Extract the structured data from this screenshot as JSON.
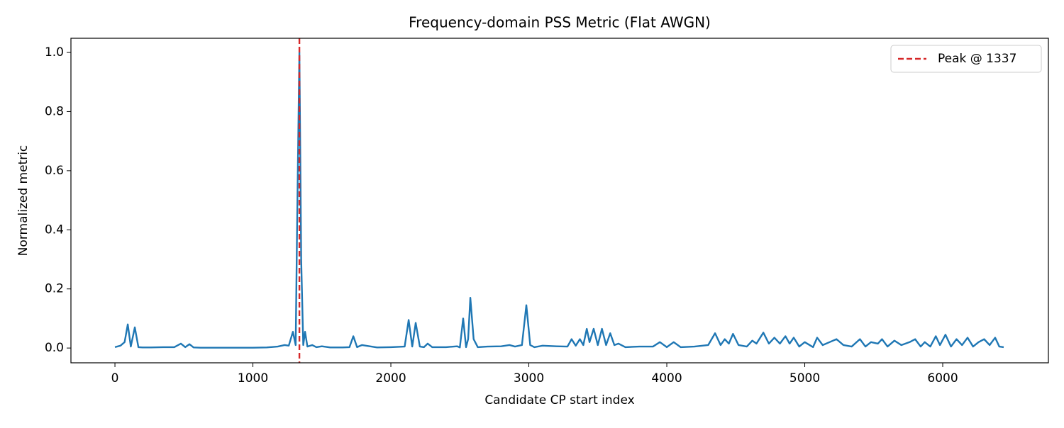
{
  "chart_data": {
    "type": "line",
    "title": "Frequency-domain PSS Metric (Flat AWGN)",
    "x_label": "Candidate CP start index",
    "y_label": "Normalized metric",
    "x": [
      0,
      40,
      70,
      93,
      115,
      144,
      170,
      200,
      260,
      350,
      430,
      478,
      510,
      540,
      570,
      620,
      800,
      1000,
      1100,
      1180,
      1230,
      1260,
      1290,
      1310,
      1320,
      1337,
      1350,
      1365,
      1378,
      1395,
      1430,
      1460,
      1500,
      1560,
      1650,
      1700,
      1728,
      1755,
      1790,
      1900,
      2000,
      2100,
      2129,
      2155,
      2180,
      2210,
      2240,
      2267,
      2300,
      2400,
      2480,
      2500,
      2524,
      2545,
      2560,
      2576,
      2600,
      2630,
      2700,
      2800,
      2860,
      2900,
      2950,
      2982,
      3010,
      3040,
      3100,
      3200,
      3280,
      3310,
      3340,
      3370,
      3395,
      3420,
      3440,
      3470,
      3500,
      3530,
      3560,
      3590,
      3620,
      3650,
      3700,
      3800,
      3900,
      3950,
      4000,
      4050,
      4100,
      4200,
      4300,
      4350,
      4390,
      4420,
      4450,
      4480,
      4520,
      4580,
      4620,
      4650,
      4700,
      4740,
      4780,
      4820,
      4860,
      4890,
      4920,
      4960,
      5000,
      5060,
      5090,
      5130,
      5180,
      5230,
      5280,
      5340,
      5400,
      5440,
      5480,
      5530,
      5560,
      5600,
      5650,
      5700,
      5760,
      5800,
      5840,
      5870,
      5910,
      5950,
      5980,
      6020,
      6060,
      6100,
      6140,
      6180,
      6220,
      6260,
      6300,
      6340,
      6380,
      6410,
      6442
    ],
    "series": [
      {
        "color": "#1f77b4",
        "values": [
          0.003,
          0.008,
          0.02,
          0.08,
          0.005,
          0.07,
          0.003,
          0.002,
          0.002,
          0.003,
          0.003,
          0.015,
          0.003,
          0.013,
          0.002,
          0.001,
          0.001,
          0.001,
          0.002,
          0.005,
          0.01,
          0.008,
          0.055,
          0.01,
          0.4,
          1.0,
          0.3,
          0.01,
          0.055,
          0.005,
          0.01,
          0.003,
          0.006,
          0.002,
          0.002,
          0.003,
          0.04,
          0.003,
          0.01,
          0.002,
          0.003,
          0.005,
          0.095,
          0.005,
          0.085,
          0.005,
          0.003,
          0.015,
          0.003,
          0.003,
          0.006,
          0.002,
          0.1,
          0.003,
          0.03,
          0.17,
          0.03,
          0.003,
          0.005,
          0.006,
          0.01,
          0.005,
          0.01,
          0.145,
          0.01,
          0.003,
          0.008,
          0.006,
          0.005,
          0.03,
          0.008,
          0.03,
          0.01,
          0.065,
          0.02,
          0.065,
          0.01,
          0.065,
          0.01,
          0.05,
          0.01,
          0.015,
          0.003,
          0.005,
          0.005,
          0.02,
          0.003,
          0.02,
          0.003,
          0.005,
          0.01,
          0.05,
          0.01,
          0.03,
          0.015,
          0.048,
          0.01,
          0.005,
          0.025,
          0.015,
          0.052,
          0.015,
          0.035,
          0.015,
          0.04,
          0.015,
          0.035,
          0.005,
          0.02,
          0.003,
          0.035,
          0.01,
          0.02,
          0.03,
          0.01,
          0.005,
          0.03,
          0.005,
          0.02,
          0.015,
          0.03,
          0.005,
          0.025,
          0.01,
          0.02,
          0.03,
          0.005,
          0.02,
          0.005,
          0.04,
          0.01,
          0.045,
          0.005,
          0.03,
          0.01,
          0.035,
          0.005,
          0.02,
          0.03,
          0.01,
          0.035,
          0.005,
          0.003
        ]
      }
    ],
    "markers": [
      {
        "name": "Peak @ 1337",
        "x": 1337,
        "color": "#d62728",
        "style": "dashed"
      }
    ],
    "xlim": [
      -319,
      6766
    ],
    "ylim": [
      -0.05,
      1.048
    ],
    "xticks": [
      0,
      1000,
      2000,
      3000,
      4000,
      5000,
      6000
    ],
    "yticks": [
      {
        "value": 0,
        "label": "0.0"
      },
      {
        "value": 0.2,
        "label": "0.2"
      },
      {
        "value": 0.4,
        "label": "0.4"
      },
      {
        "value": 0.6,
        "label": "0.6"
      },
      {
        "value": 0.8,
        "label": "0.8"
      },
      {
        "value": 1,
        "label": "1.0"
      }
    ],
    "legend": "upper right"
  }
}
